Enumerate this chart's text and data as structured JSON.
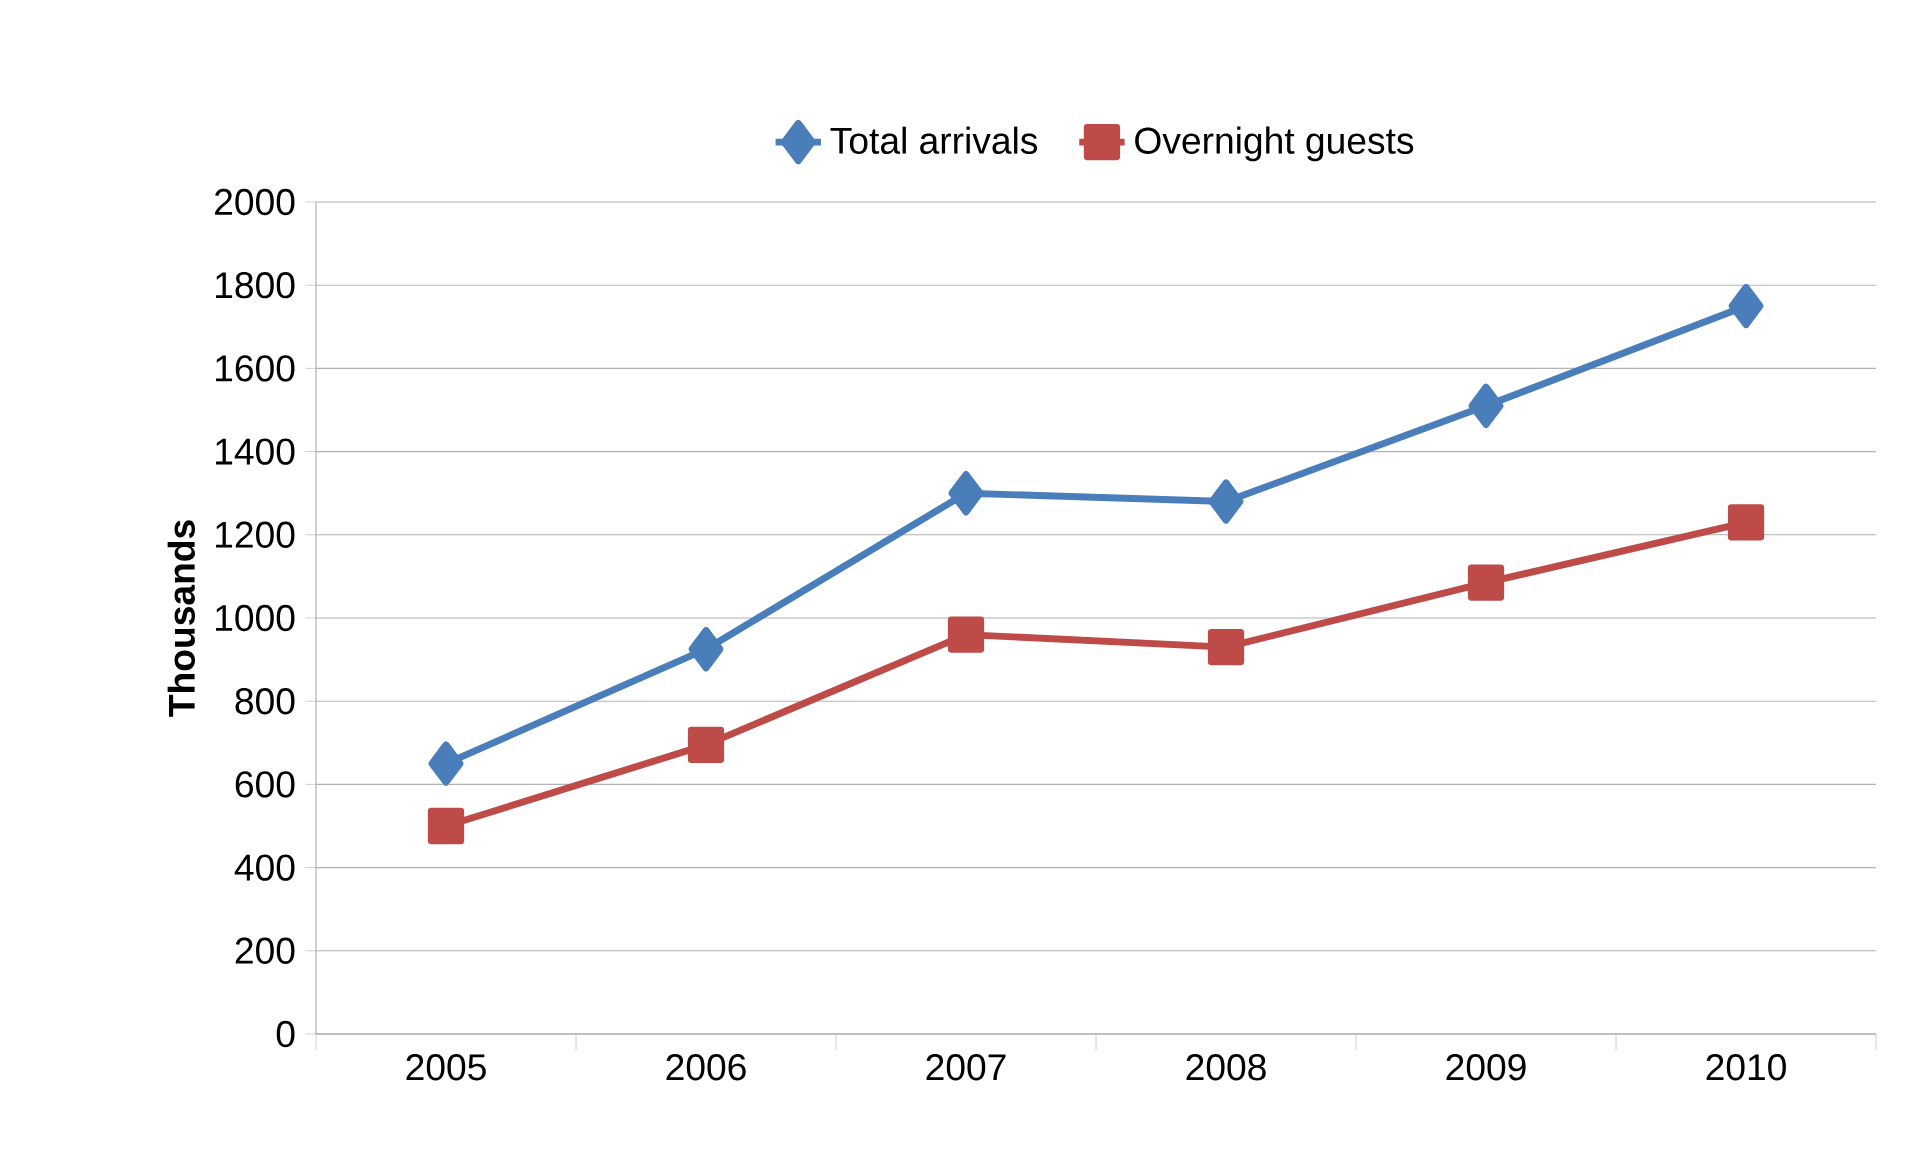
{
  "chart_data": {
    "type": "line",
    "ylabel": "Thousands",
    "categories": [
      "2005",
      "2006",
      "2007",
      "2008",
      "2009",
      "2010"
    ],
    "series": [
      {
        "name": "Total arrivals",
        "color": "#4a7ebb",
        "marker": "diamond",
        "values": [
          650,
          925,
          1300,
          1280,
          1510,
          1750
        ]
      },
      {
        "name": "Overnight  guests",
        "color": "#be4b48",
        "marker": "square",
        "values": [
          500,
          695,
          960,
          930,
          1085,
          1230
        ]
      }
    ],
    "ylim": [
      0,
      2000
    ],
    "yticks": [
      0,
      200,
      400,
      600,
      800,
      1000,
      1200,
      1400,
      1600,
      1800,
      2000
    ],
    "grid": "y",
    "legend": "top",
    "line_style": "solid"
  }
}
